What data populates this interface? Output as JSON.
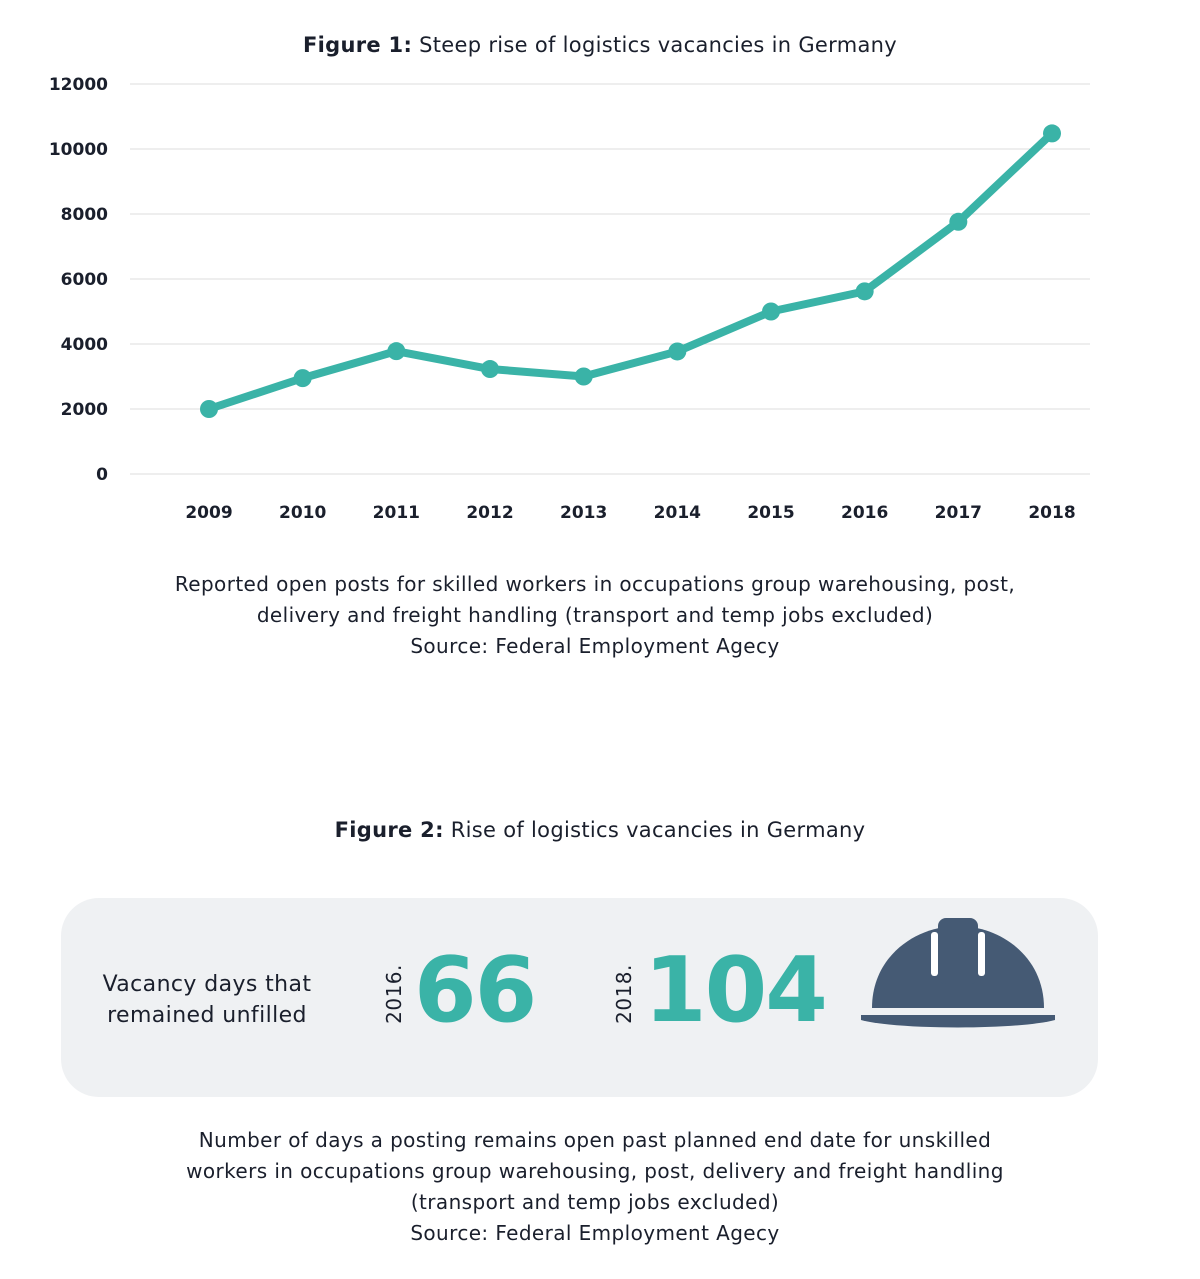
{
  "figure1": {
    "title_bold": "Figure 1:",
    "title_rest": " Steep rise of logistics vacancies in Germany",
    "caption_lines": [
      "Reported open posts for skilled workers in occupations group warehousing, post,",
      "delivery and freight handling (transport and temp jobs excluded)",
      "Source: Federal Employment Agecy"
    ]
  },
  "chart_data": {
    "type": "line",
    "categories": [
      "2009",
      "2010",
      "2011",
      "2012",
      "2013",
      "2014",
      "2015",
      "2016",
      "2017",
      "2018"
    ],
    "series": [
      {
        "values": [
          2000,
          2950,
          3780,
          3230,
          3000,
          3770,
          5000,
          5620,
          7760,
          10480
        ]
      }
    ],
    "title": "Steep rise of logistics vacancies in Germany",
    "xlabel": "",
    "ylabel": "",
    "ylim": [
      0,
      12000
    ],
    "yticks": [
      "0",
      "2000",
      "4000",
      "6000",
      "8000",
      "10000",
      "12000"
    ],
    "grid": true,
    "line_color": "#3ab3a7"
  },
  "figure2": {
    "title_bold": "Figure 2:",
    "title_rest": " Rise of logistics vacancies in Germany",
    "label_lines": [
      "Vacancy days that",
      "remained unfilled"
    ],
    "stat1_year": "2016.",
    "stat1_value": "66",
    "stat2_year": "2018.",
    "stat2_value": "104",
    "icon": "hard-hat-icon",
    "caption_lines": [
      "Number of days a posting remains open past planned end date for unskilled",
      "workers in occupations group warehousing, post, delivery and freight handling",
      "(transport and temp jobs excluded)",
      "Source: Federal Employment Agecy"
    ]
  },
  "colors": {
    "accent": "#3ab3a7",
    "icon": "#455a74",
    "panel": "#eff1f3",
    "grid": "#dcdcdc"
  }
}
